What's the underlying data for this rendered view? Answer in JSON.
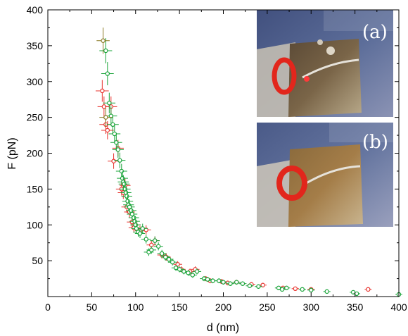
{
  "chart_data": {
    "type": "scatter",
    "xlabel": "d (nm)",
    "ylabel": "F (pN)",
    "xlim": [
      0,
      400
    ],
    "ylim": [
      0,
      400
    ],
    "xticks": [
      0,
      50,
      100,
      150,
      200,
      250,
      300,
      350,
      400
    ],
    "yticks": [
      50,
      100,
      150,
      200,
      250,
      300,
      350,
      400
    ],
    "grid": false,
    "colors": {
      "red": "#e8332e",
      "green": "#1aa43a",
      "olive": "#8a7a24"
    },
    "series": [
      {
        "color": "red",
        "points": [
          [
            62,
            287
          ],
          [
            64,
            265
          ],
          [
            66,
            240
          ],
          [
            68,
            232
          ],
          [
            72,
            265
          ],
          [
            75,
            189
          ],
          [
            80,
            207
          ],
          [
            84,
            150
          ],
          [
            86,
            145
          ],
          [
            88,
            155
          ],
          [
            90,
            125
          ],
          [
            93,
            118
          ],
          [
            96,
            104
          ],
          [
            98,
            96
          ],
          [
            100,
            100
          ],
          [
            105,
            92
          ],
          [
            112,
            93
          ],
          [
            118,
            72
          ],
          [
            122,
            78
          ],
          [
            130,
            58
          ],
          [
            135,
            55
          ],
          [
            148,
            45
          ],
          [
            152,
            38
          ],
          [
            162,
            35
          ],
          [
            168,
            38
          ],
          [
            180,
            25
          ],
          [
            185,
            22
          ],
          [
            198,
            21
          ],
          [
            205,
            19
          ],
          [
            215,
            20
          ],
          [
            232,
            17
          ],
          [
            245,
            16
          ],
          [
            268,
            12
          ],
          [
            282,
            11
          ],
          [
            300,
            10
          ],
          [
            365,
            10
          ]
        ]
      },
      {
        "color": "green",
        "points": [
          [
            66,
            343
          ],
          [
            68,
            311
          ],
          [
            70,
            270
          ],
          [
            72,
            252
          ],
          [
            74,
            240
          ],
          [
            76,
            227
          ],
          [
            78,
            215
          ],
          [
            80,
            205
          ],
          [
            82,
            190
          ],
          [
            84,
            175
          ],
          [
            85,
            165
          ],
          [
            86,
            160
          ],
          [
            87,
            157
          ],
          [
            88,
            150
          ],
          [
            89,
            145
          ],
          [
            90,
            140
          ],
          [
            91,
            133
          ],
          [
            92,
            128
          ],
          [
            93,
            125
          ],
          [
            95,
            120
          ],
          [
            96,
            115
          ],
          [
            98,
            110
          ],
          [
            99,
            105
          ],
          [
            100,
            100
          ],
          [
            101,
            95
          ],
          [
            103,
            90
          ],
          [
            105,
            88
          ],
          [
            108,
            95
          ],
          [
            112,
            80
          ],
          [
            115,
            62
          ],
          [
            118,
            65
          ],
          [
            122,
            78
          ],
          [
            126,
            70
          ],
          [
            130,
            60
          ],
          [
            134,
            55
          ],
          [
            138,
            52
          ],
          [
            142,
            48
          ],
          [
            146,
            40
          ],
          [
            150,
            38
          ],
          [
            155,
            35
          ],
          [
            160,
            33
          ],
          [
            165,
            30
          ],
          [
            170,
            35
          ],
          [
            178,
            25
          ],
          [
            182,
            24
          ],
          [
            188,
            22
          ],
          [
            195,
            22
          ],
          [
            200,
            20
          ],
          [
            208,
            18
          ],
          [
            215,
            20
          ],
          [
            222,
            18
          ],
          [
            230,
            15
          ],
          [
            240,
            14
          ],
          [
            263,
            12
          ],
          [
            267,
            10
          ],
          [
            272,
            12
          ],
          [
            290,
            10
          ],
          [
            300,
            9
          ],
          [
            318,
            7
          ],
          [
            348,
            6
          ],
          [
            352,
            4
          ],
          [
            400,
            3
          ]
        ]
      },
      {
        "color": "olive",
        "points": [
          [
            63,
            357
          ],
          [
            66,
            250
          ]
        ]
      }
    ],
    "insets": [
      {
        "label": "(a)"
      },
      {
        "label": "(b)"
      }
    ]
  }
}
